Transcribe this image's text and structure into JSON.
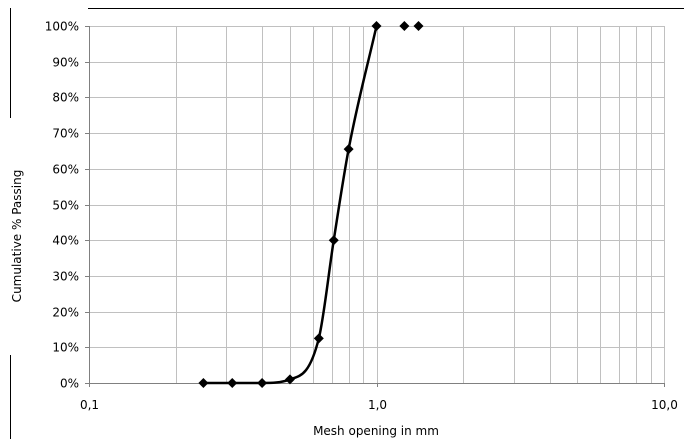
{
  "chart_data": {
    "type": "line",
    "xlabel": "Mesh opening in mm",
    "ylabel": "Cumulative % Passing",
    "x_scale": "log",
    "xlim": [
      0.1,
      10
    ],
    "ylim": [
      0,
      100
    ],
    "x_ticks": [
      {
        "value": 0.1,
        "label": "0,1"
      },
      {
        "value": 1,
        "label": "1,0"
      },
      {
        "value": 10,
        "label": "10,0"
      }
    ],
    "y_ticks": [
      {
        "value": 0,
        "label": "0%"
      },
      {
        "value": 10,
        "label": "10%"
      },
      {
        "value": 20,
        "label": "20%"
      },
      {
        "value": 30,
        "label": "30%"
      },
      {
        "value": 40,
        "label": "40%"
      },
      {
        "value": 50,
        "label": "50%"
      },
      {
        "value": 60,
        "label": "60%"
      },
      {
        "value": 70,
        "label": "70%"
      },
      {
        "value": 80,
        "label": "80%"
      },
      {
        "value": 90,
        "label": "90%"
      },
      {
        "value": 100,
        "label": "100%"
      }
    ],
    "grid": true,
    "legend": "none",
    "series": [
      {
        "x": [
          0.25,
          0.315,
          0.4,
          0.5,
          0.63,
          0.71,
          0.8,
          1.0,
          1.25,
          1.4
        ],
        "y": [
          0,
          0,
          0,
          1,
          12.5,
          40,
          65.5,
          100,
          100,
          100
        ],
        "color": "#000000",
        "marker": "diamond"
      }
    ]
  }
}
